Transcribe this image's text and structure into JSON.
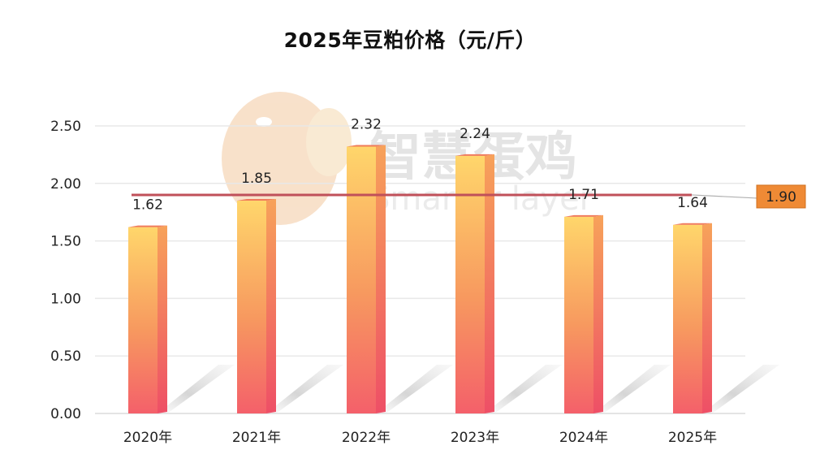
{
  "title": "2025年豆粕价格（元/斤）",
  "watermark": {
    "cn": "智慧蛋鸡",
    "en": "Smarter layer"
  },
  "colors": {
    "bar_top": "#ffd66b",
    "bar_bottom": "#f4606a",
    "bar_side": "#f07a5a",
    "reference_line": "#c0505a",
    "reference_label_bg": "#ef8a35",
    "gridline": "#e8e8e8"
  },
  "chart_data": {
    "type": "bar",
    "title": "2025年豆粕价格（元/斤）",
    "xlabel": "",
    "ylabel": "",
    "categories": [
      "2020年",
      "2021年",
      "2022年",
      "2023年",
      "2024年",
      "2025年"
    ],
    "values": [
      1.62,
      1.85,
      2.32,
      2.24,
      1.71,
      1.64
    ],
    "value_labels": [
      "1.62",
      "1.85",
      "2.32",
      "2.24",
      "1.71",
      "1.64"
    ],
    "ylim": [
      0,
      2.5
    ],
    "yticks": [
      "0.00",
      "0.50",
      "1.00",
      "1.50",
      "2.00",
      "2.50"
    ],
    "grid": true,
    "legend": "none",
    "reference_line": {
      "value": 1.9,
      "label": "1.90"
    }
  }
}
